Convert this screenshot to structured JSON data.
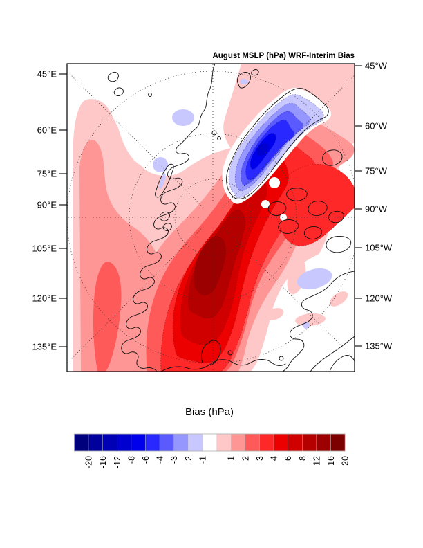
{
  "figure": {
    "title": "August MSLP (hPa) WRF-Interim Bias",
    "colorbar_title": "Bias (hPa)"
  },
  "axes": {
    "left_labels": [
      "45°E",
      "60°E",
      "75°E",
      "90°E",
      "105°E",
      "120°E",
      "135°E"
    ],
    "right_labels": [
      "45°W",
      "60°W",
      "75°W",
      "90°W",
      "105°W",
      "120°W",
      "135°W"
    ]
  },
  "colorbar": {
    "tick_labels": [
      "-20",
      "-16",
      "-12",
      "-8",
      "-6",
      "-4",
      "-3",
      "-2",
      "-1",
      "1",
      "2",
      "3",
      "4",
      "6",
      "8",
      "12",
      "16",
      "20"
    ],
    "palette_blue": [
      "#00007D",
      "#00009C",
      "#0000B5",
      "#0000D0",
      "#0000ED",
      "#2828FF",
      "#5A5AFF",
      "#9696FF",
      "#C8C8FF"
    ],
    "gap_color": "#FFFFFF",
    "palette_red": [
      "#FFC8C8",
      "#FF9696",
      "#FF5A5A",
      "#FF2828",
      "#ED0000",
      "#D00000",
      "#B50000",
      "#9C0000",
      "#7D0000"
    ]
  },
  "chart_data": {
    "type": "heatmap",
    "subtype": "filled-contour polar stereographic map",
    "title": "August MSLP (hPa) WRF-Interim Bias",
    "colorbar_label": "Bias (hPa)",
    "units": "hPa",
    "contour_levels": [
      -20,
      -16,
      -12,
      -8,
      -6,
      -4,
      -3,
      -2,
      -1,
      1,
      2,
      3,
      4,
      6,
      8,
      12,
      16,
      20
    ],
    "projection": "north polar stereographic, Arctic view",
    "left_axis_ticks": [
      "45°E",
      "60°E",
      "75°E",
      "90°E",
      "105°E",
      "120°E",
      "135°E"
    ],
    "right_axis_ticks": [
      "45°W",
      "60°W",
      "75°W",
      "90°W",
      "105°W",
      "120°W",
      "135°W"
    ],
    "legend_position": "horizontal labelbar below map",
    "features": [
      {
        "name": "positive-bias-maximum",
        "value": "16 to 20 hPa",
        "location": "central Arctic / Siberian sector left-center of map"
      },
      {
        "name": "broad-positive-bias",
        "value": "1 to 12 hPa",
        "location": "most of Eurasian Arctic, central Arctic Ocean and Canadian archipelago"
      },
      {
        "name": "negative-bias-minimum",
        "value": "-6 to -8 hPa",
        "location": "over Greenland, elongated SW-NE blob ringed by near-zero white band"
      },
      {
        "name": "weak-negative-patches",
        "value": "-1 to -2 hPa",
        "location": "Barents/Kara seas, near Svalbard, Novaya Zemlya, northern Canada, Bering area"
      },
      {
        "name": "near-zero-bias",
        "value": "-1 to 1 hPa (white)",
        "location": "Scandinavia/Barents wedge, Davis Strait wedge at right edge, Alaska / lower-right sector"
      }
    ]
  }
}
